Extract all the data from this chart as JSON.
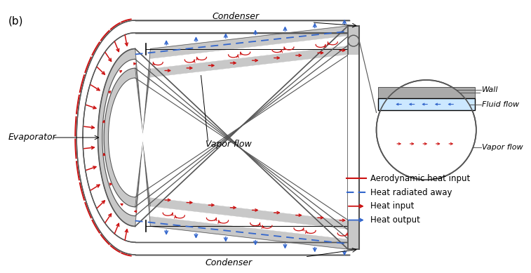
{
  "bg_color": "#ffffff",
  "wall_color": "#c8c8c8",
  "wall_edge_color": "#555555",
  "red_color": "#cc1111",
  "blue_color": "#3366cc",
  "label_b": "(b)",
  "label_evaporator": "Evaporator",
  "label_condenser_top": "Condenser",
  "label_condenser_bot": "Condenser",
  "label_vapor_flow": "Vapor flow",
  "label_wall": "Wall",
  "label_fluid_flow": "Fluid flow",
  "label_vapor_flow2": "Vapor flow",
  "legend_items": [
    {
      "label": "Aerodynamic heat input",
      "color": "#cc1111",
      "style": "solid"
    },
    {
      "label": "Heat radiated away",
      "color": "#3366cc",
      "style": "dashed"
    },
    {
      "label": "Heat input",
      "color": "#cc1111",
      "style": "arrow"
    },
    {
      "label": "Heat output",
      "color": "#3366cc",
      "style": "arrow"
    }
  ],
  "fig_w": 7.57,
  "fig_h": 3.89,
  "dpi": 100
}
